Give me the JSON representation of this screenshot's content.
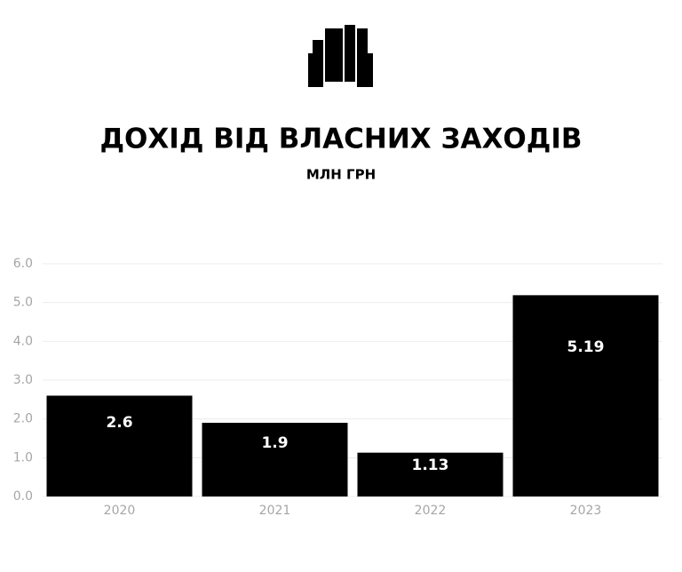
{
  "chart_data": {
    "type": "bar",
    "title": "ДОХІД ВІД ВЛАСНИХ ЗАХОДІВ",
    "subtitle": "МЛН ГРН",
    "categories": [
      "2020",
      "2021",
      "2022",
      "2023"
    ],
    "values": [
      2.6,
      1.9,
      1.13,
      5.19
    ],
    "color": "#000000",
    "ylim": [
      0,
      6
    ],
    "yticks": [
      {
        "value": 0,
        "label": "0.0"
      },
      {
        "value": 1,
        "label": "1.0"
      },
      {
        "value": 2,
        "label": "2.0"
      },
      {
        "value": 3,
        "label": "3.0"
      },
      {
        "value": 4,
        "label": "4.0"
      },
      {
        "value": 5,
        "label": "5.0"
      },
      {
        "value": 6,
        "label": "6.0"
      }
    ],
    "grid": true
  }
}
